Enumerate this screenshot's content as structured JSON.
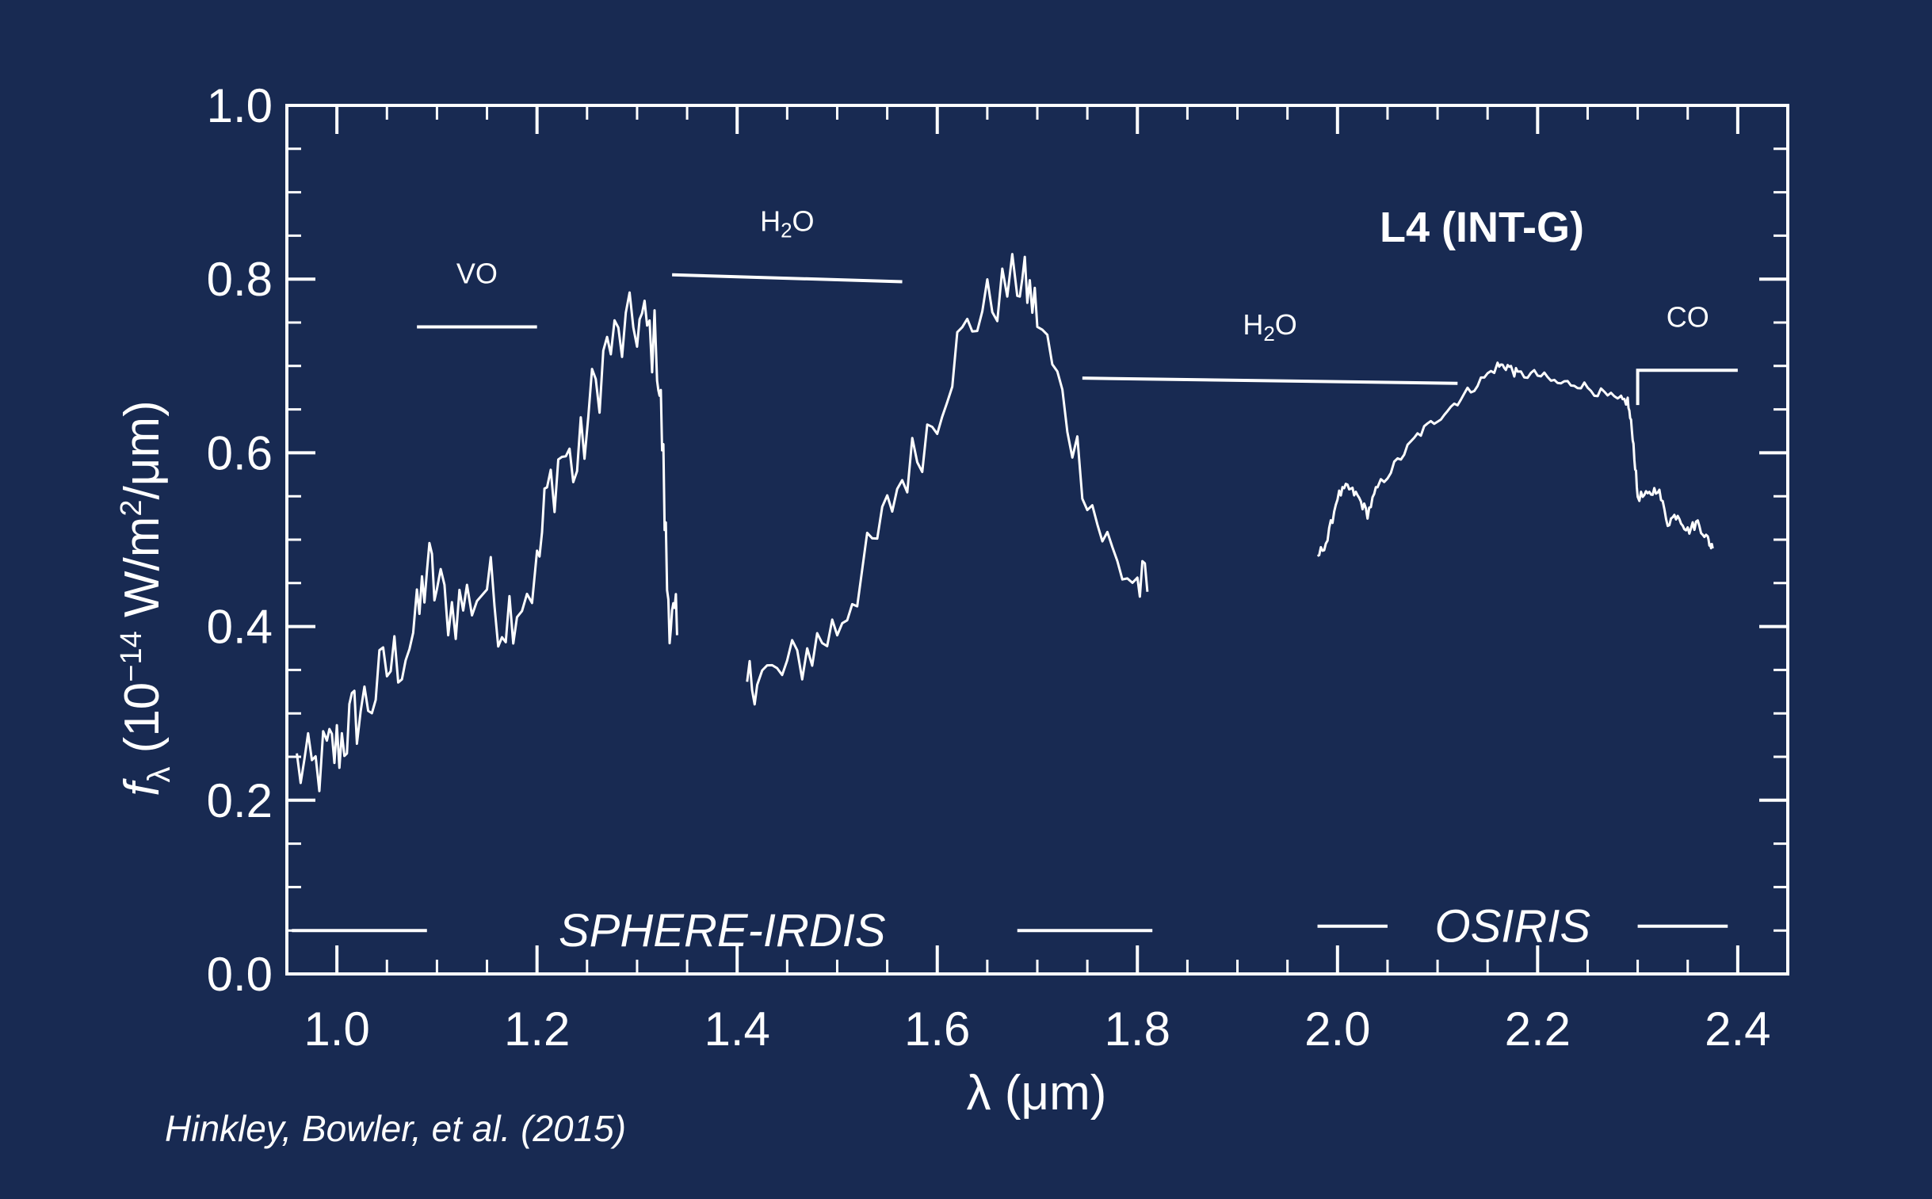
{
  "chart_data": {
    "type": "line",
    "xlabel": "λ (μm)",
    "ylabel": {
      "symbol": "f",
      "subscript": "λ",
      "prefix": " (10",
      "exponent": "−14",
      "mid": " W/m",
      "exponent2": "2",
      "suffix": "/μm)"
    },
    "xlim": [
      0.95,
      2.45
    ],
    "ylim": [
      0.0,
      1.0
    ],
    "x_ticks": [
      {
        "value": 1.0,
        "label": "1.0"
      },
      {
        "value": 1.2,
        "label": "1.2"
      },
      {
        "value": 1.4,
        "label": "1.4"
      },
      {
        "value": 1.6,
        "label": "1.6"
      },
      {
        "value": 1.8,
        "label": "1.8"
      },
      {
        "value": 2.0,
        "label": "2.0"
      },
      {
        "value": 2.2,
        "label": "2.2"
      },
      {
        "value": 2.4,
        "label": "2.4"
      }
    ],
    "y_ticks": [
      {
        "value": 0.0,
        "label": "0.0"
      },
      {
        "value": 0.2,
        "label": "0.2"
      },
      {
        "value": 0.4,
        "label": "0.4"
      },
      {
        "value": 0.6,
        "label": "0.6"
      },
      {
        "value": 0.8,
        "label": "0.8"
      },
      {
        "value": 1.0,
        "label": "1.0"
      }
    ],
    "x_minor_step": 0.05,
    "y_minor_step": 0.05,
    "title": "L4 (INT-G)",
    "series": [
      {
        "instrument": "SPHERE-IRDIS",
        "segments": [
          {
            "x": [
              0.96,
              0.975,
              0.99,
              1.0,
              1.01,
              1.02,
              1.035,
              1.05,
              1.065,
              1.08,
              1.09,
              1.1,
              1.115,
              1.13,
              1.15,
              1.165,
              1.18,
              1.2,
              1.21,
              1.225,
              1.24,
              1.255,
              1.27,
              1.285,
              1.3,
              1.31,
              1.32,
              1.325,
              1.33,
              1.335,
              1.34
            ],
            "y": [
              0.24,
              0.23,
              0.25,
              0.26,
              0.28,
              0.3,
              0.32,
              0.35,
              0.37,
              0.4,
              0.47,
              0.44,
              0.42,
              0.43,
              0.45,
              0.41,
              0.43,
              0.46,
              0.55,
              0.6,
              0.58,
              0.66,
              0.72,
              0.73,
              0.75,
              0.74,
              0.72,
              0.62,
              0.45,
              0.4,
              0.39
            ],
            "noise": 0.045
          },
          {
            "x": [
              1.41,
              1.42,
              1.44,
              1.46,
              1.48,
              1.5,
              1.52,
              1.54,
              1.56,
              1.58,
              1.6,
              1.62,
              1.64,
              1.66,
              1.68,
              1.69,
              1.7,
              1.72,
              1.74,
              1.76,
              1.78,
              1.8,
              1.81
            ],
            "y": [
              0.33,
              0.35,
              0.34,
              0.36,
              0.38,
              0.4,
              0.45,
              0.5,
              0.56,
              0.6,
              0.65,
              0.72,
              0.76,
              0.78,
              0.8,
              0.79,
              0.76,
              0.68,
              0.6,
              0.52,
              0.47,
              0.45,
              0.44
            ],
            "noise": 0.035
          }
        ]
      },
      {
        "instrument": "OSIRIS",
        "segments": [
          {
            "x": [
              1.98,
              1.99,
              2.0,
              2.01,
              2.02,
              2.03,
              2.04,
              2.06,
              2.08,
              2.1,
              2.12,
              2.14,
              2.16,
              2.17,
              2.18,
              2.2,
              2.22,
              2.24,
              2.26,
              2.28,
              2.29,
              2.295,
              2.3,
              2.31,
              2.32,
              2.33,
              2.34,
              2.35,
              2.36,
              2.37,
              2.375
            ],
            "y": [
              0.48,
              0.5,
              0.55,
              0.56,
              0.55,
              0.53,
              0.56,
              0.59,
              0.62,
              0.64,
              0.66,
              0.68,
              0.7,
              0.7,
              0.69,
              0.69,
              0.68,
              0.68,
              0.67,
              0.66,
              0.66,
              0.62,
              0.55,
              0.55,
              0.56,
              0.52,
              0.53,
              0.51,
              0.52,
              0.5,
              0.49
            ],
            "noise": 0.006
          }
        ]
      }
    ],
    "band_labels": [
      {
        "name": "VO",
        "x": [
          1.08,
          1.2
        ],
        "y": 0.745
      },
      {
        "name_main": "H",
        "name_sub": "2",
        "name_end": "O",
        "x": [
          1.335,
          1.565
        ],
        "y": [
          0.805,
          0.797
        ]
      },
      {
        "name_main": "H",
        "name_sub": "2",
        "name_end": "O",
        "x": [
          1.745,
          2.12
        ],
        "y": [
          0.686,
          0.68
        ]
      },
      {
        "name": "CO",
        "x": [
          2.3,
          2.4
        ],
        "y": 0.695
      }
    ],
    "instrument_labels": [
      {
        "text": "SPHERE-IRDIS",
        "y": 0.05,
        "lines": [
          [
            0.955,
            1.09
          ],
          [
            1.68,
            1.815
          ]
        ]
      },
      {
        "text": "OSIRIS",
        "y": 0.055,
        "lines": [
          [
            1.98,
            2.05
          ],
          [
            2.3,
            2.39
          ]
        ]
      }
    ]
  },
  "credit": "Hinkley, Bowler, et al. (2015)",
  "colors": {
    "background": "#182a52",
    "foreground": "#ffffff"
  }
}
